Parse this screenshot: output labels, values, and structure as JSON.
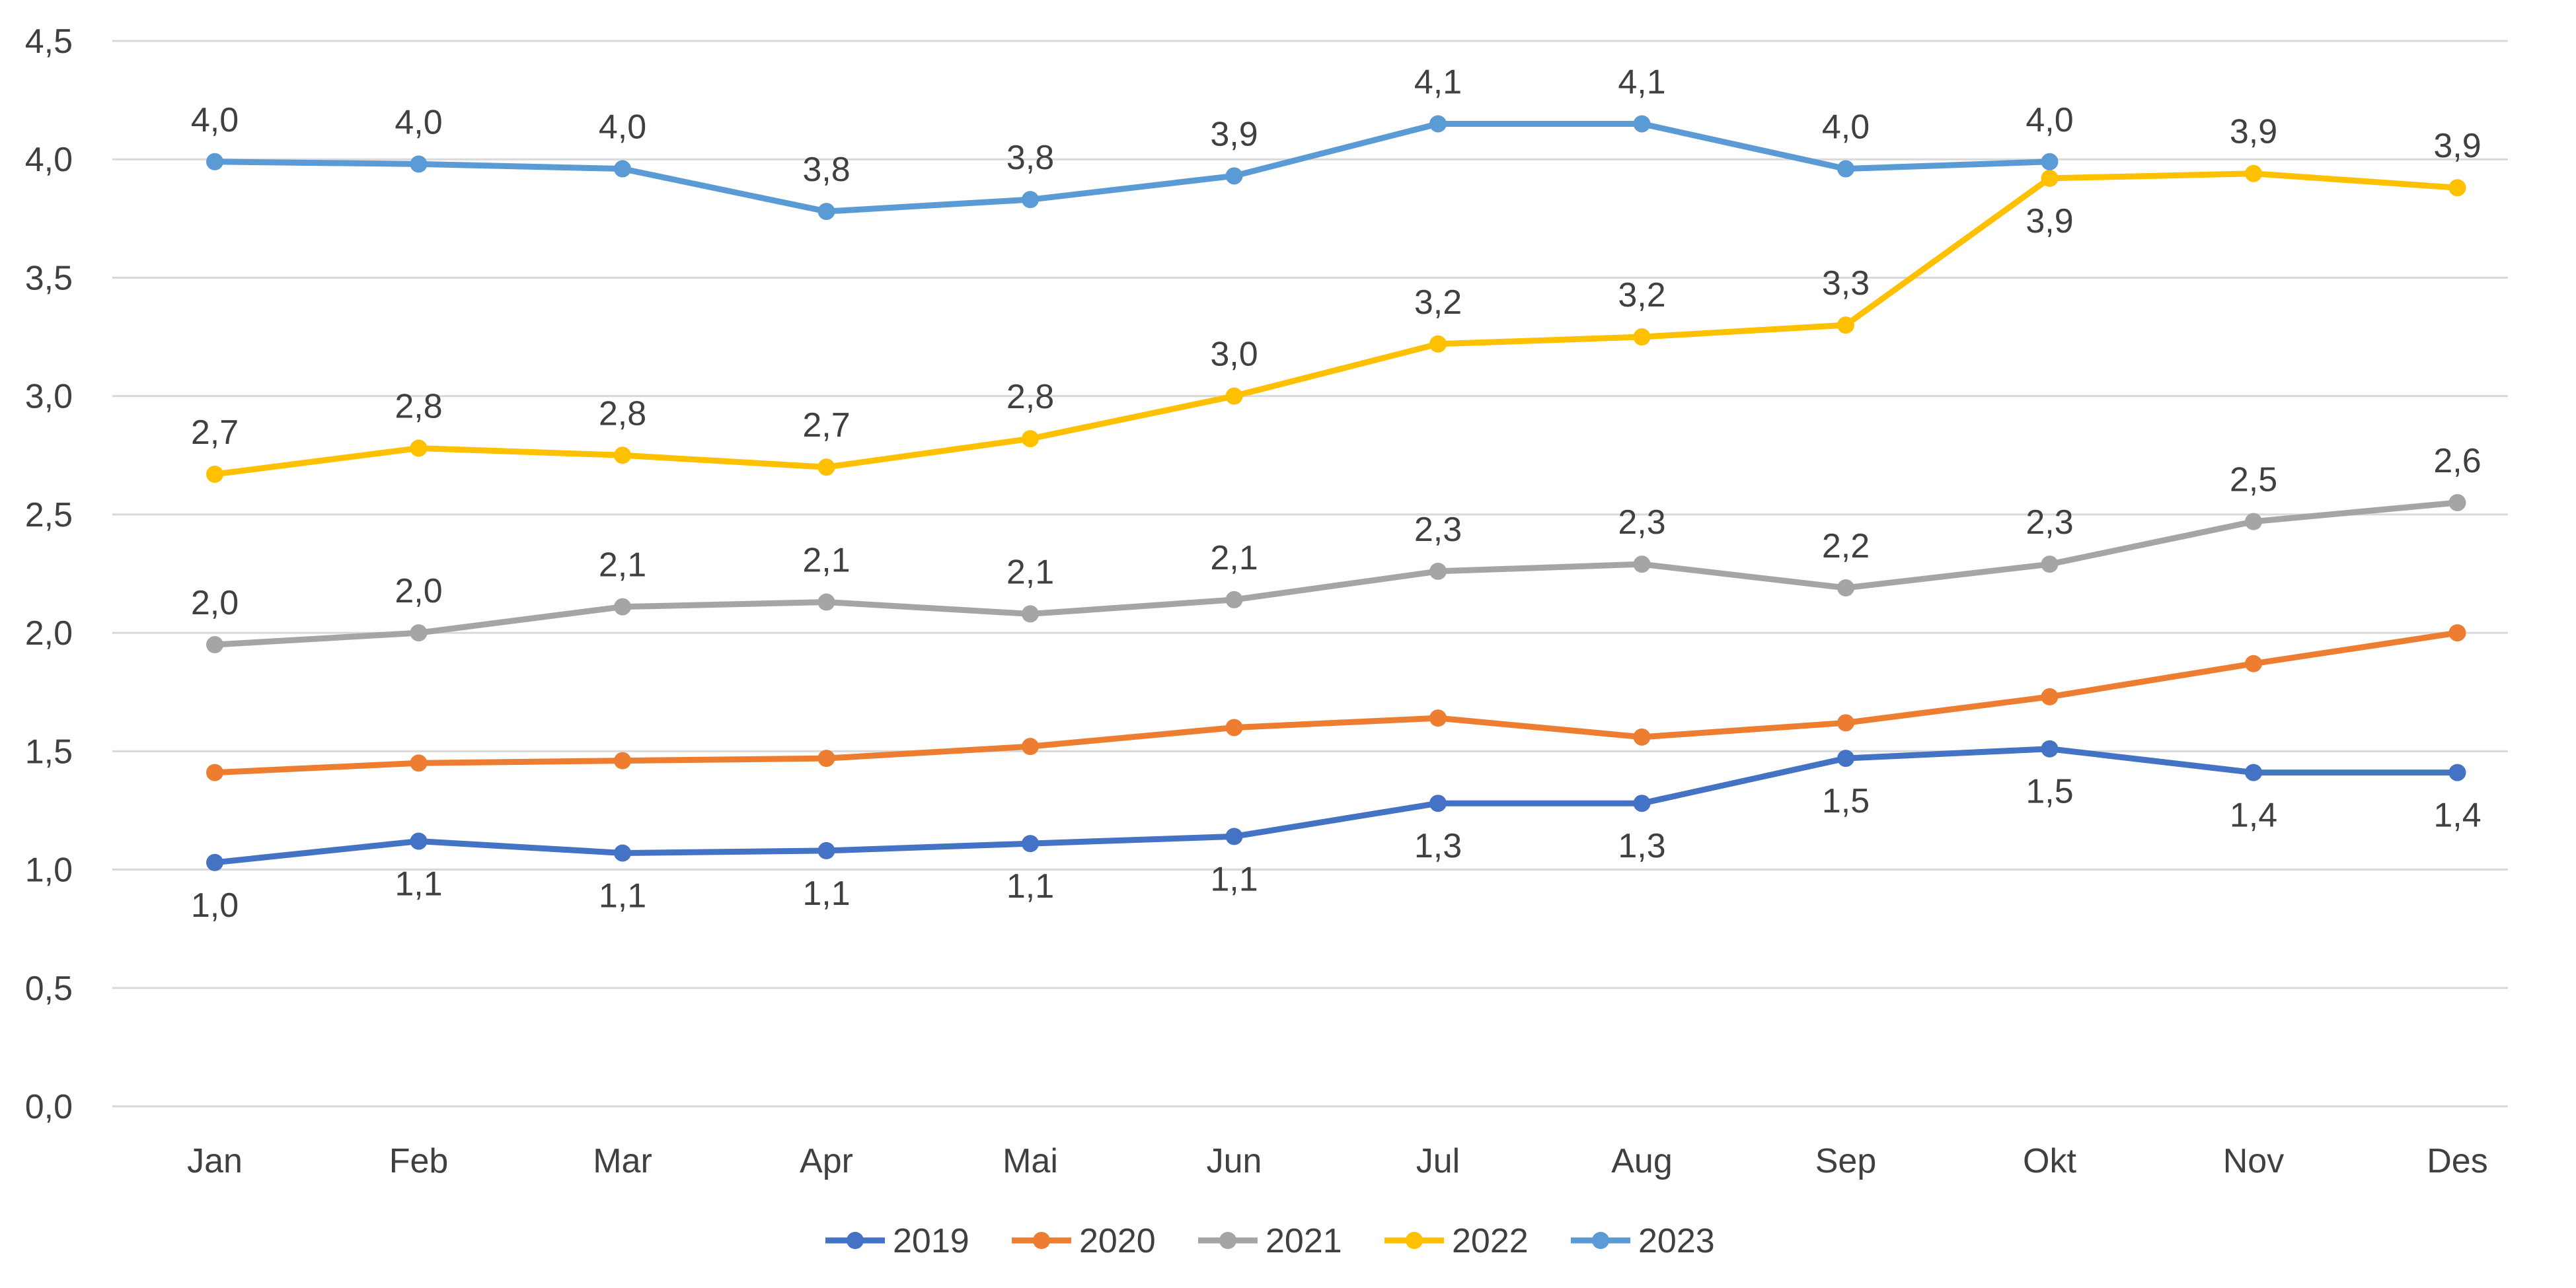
{
  "chart_data": {
    "type": "line",
    "title": "",
    "xlabel": "",
    "ylabel": "",
    "categories": [
      "Jan",
      "Feb",
      "Mar",
      "Apr",
      "Mai",
      "Jun",
      "Jul",
      "Aug",
      "Sep",
      "Okt",
      "Nov",
      "Des"
    ],
    "ylim": [
      0,
      4.5
    ],
    "yticks": [
      0,
      0.5,
      1.0,
      1.5,
      2.0,
      2.5,
      3.0,
      3.5,
      4.0,
      4.5
    ],
    "ytick_labels": [
      "0,0",
      "0,5",
      "1,0",
      "1,5",
      "2,0",
      "2,5",
      "3,0",
      "3,5",
      "4,0",
      "4,5"
    ],
    "grid": true,
    "legend_position": "bottom",
    "series": [
      {
        "name": "2019",
        "color": "#4472c4",
        "values": [
          1.03,
          1.12,
          1.07,
          1.08,
          1.11,
          1.14,
          1.28,
          1.28,
          1.47,
          1.51,
          1.41,
          1.41
        ],
        "data_labels": [
          "1,0",
          "1,1",
          "1,1",
          "1,1",
          "1,1",
          "1,1",
          "1,3",
          "1,3",
          "1,5",
          "1,5",
          "1,4",
          "1,4"
        ],
        "label_position": "below"
      },
      {
        "name": "2020",
        "color": "#ed7d31",
        "values": [
          1.41,
          1.45,
          1.46,
          1.47,
          1.52,
          1.6,
          1.64,
          1.56,
          1.62,
          1.73,
          1.87,
          2.0
        ],
        "data_labels": [],
        "label_position": "none"
      },
      {
        "name": "2021",
        "color": "#a5a5a5",
        "values": [
          1.95,
          2.0,
          2.11,
          2.13,
          2.08,
          2.14,
          2.26,
          2.29,
          2.19,
          2.29,
          2.47,
          2.55
        ],
        "data_labels": [
          "2,0",
          "2,0",
          "2,1",
          "2,1",
          "2,1",
          "2,1",
          "2,3",
          "2,3",
          "2,2",
          "2,3",
          "2,5",
          "2,6"
        ],
        "label_position": "above"
      },
      {
        "name": "2022",
        "color": "#ffc000",
        "values": [
          2.67,
          2.78,
          2.75,
          2.7,
          2.82,
          3.0,
          3.22,
          3.25,
          3.3,
          3.92,
          3.94,
          3.88
        ],
        "data_labels": [
          "2,7",
          "2,8",
          "2,8",
          "2,7",
          "2,8",
          "3,0",
          "3,2",
          "3,2",
          "3,3",
          "3,9",
          "3,9",
          "3,9"
        ],
        "label_position": [
          "above",
          "above",
          "above",
          "above",
          "above",
          "above",
          "above",
          "above",
          "above",
          "below",
          "above",
          "above"
        ]
      },
      {
        "name": "2023",
        "color": "#5b9bd5",
        "values": [
          3.99,
          3.98,
          3.96,
          3.78,
          3.83,
          3.93,
          4.15,
          4.15,
          3.96,
          3.99,
          null,
          null
        ],
        "data_labels": [
          "4,0",
          "4,0",
          "4,0",
          "3,8",
          "3,8",
          "3,9",
          "4,1",
          "4,1",
          "4,0",
          "4,0"
        ],
        "label_position": "above"
      }
    ]
  }
}
